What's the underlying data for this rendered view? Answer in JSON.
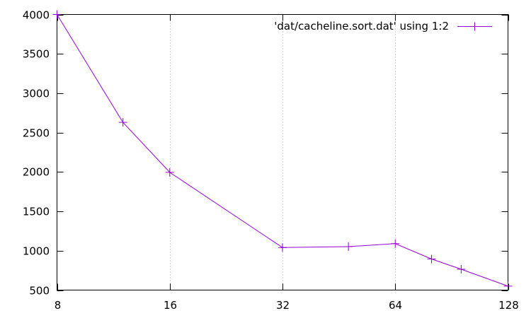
{
  "chart_data": {
    "type": "line",
    "xscale": "log2",
    "xlim": [
      8,
      128
    ],
    "ylim": [
      500,
      4000
    ],
    "x_ticks": [
      8,
      16,
      32,
      64,
      128
    ],
    "y_ticks": [
      500,
      1000,
      1500,
      2000,
      2500,
      3000,
      3500,
      4000
    ],
    "x_grid": true,
    "y_grid": false,
    "legend_position": "top-right",
    "series": [
      {
        "name": "'dat/cacheline.sort.dat' using 1:2",
        "color": "#9400d3",
        "marker": "plus",
        "x": [
          8,
          12,
          16,
          32,
          48,
          64,
          80,
          96,
          128
        ],
        "y": [
          4000,
          2630,
          1995,
          1040,
          1052,
          1090,
          895,
          765,
          550
        ]
      }
    ]
  }
}
